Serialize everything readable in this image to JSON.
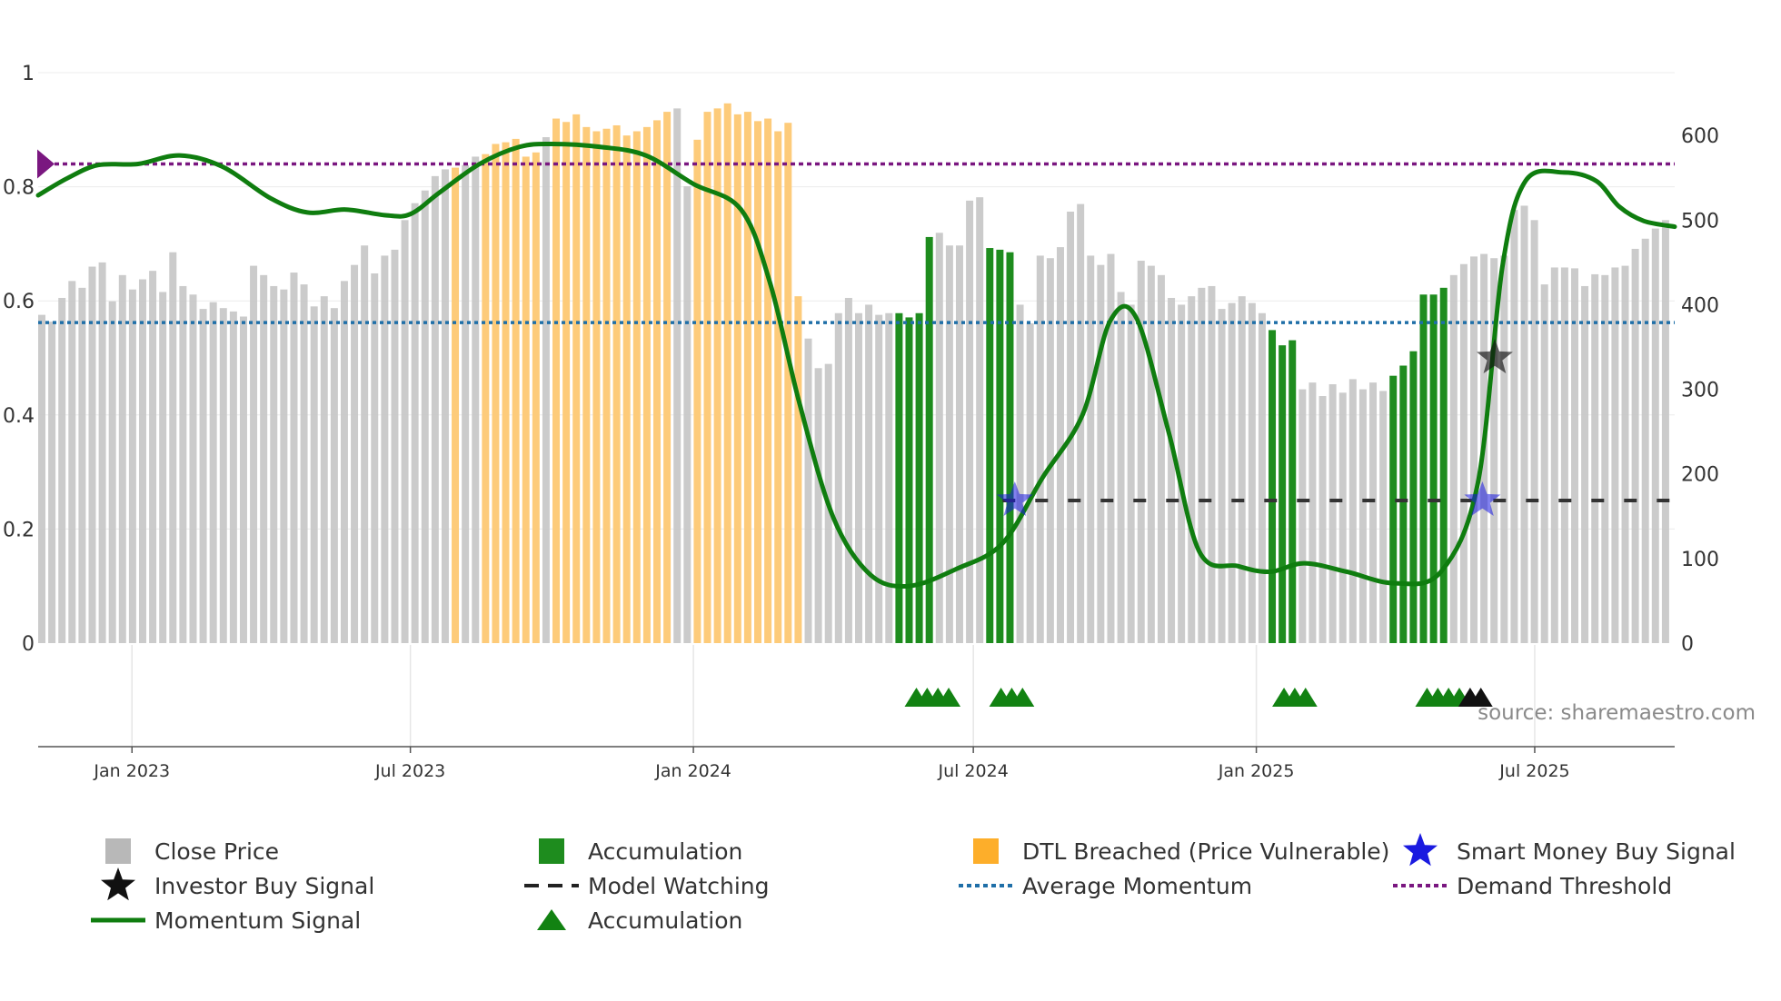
{
  "chart_data": {
    "type": "bar",
    "source": "source: sharemaestro.com",
    "left_axis": {
      "ticks": [
        {
          "value": 0,
          "label": "0"
        },
        {
          "value": 0.2,
          "label": "0.2"
        },
        {
          "value": 0.4,
          "label": "0.4"
        },
        {
          "value": 0.6,
          "label": "0.6"
        },
        {
          "value": 0.8,
          "label": "0.8"
        },
        {
          "value": 1,
          "label": "1"
        }
      ],
      "ylim": [
        0,
        1
      ]
    },
    "right_axis": {
      "ticks": [
        {
          "value": 0,
          "label": "0"
        },
        {
          "value": 100,
          "label": "100"
        },
        {
          "value": 200,
          "label": "200"
        },
        {
          "value": 300,
          "label": "300"
        },
        {
          "value": 400,
          "label": "400"
        },
        {
          "value": 500,
          "label": "500"
        },
        {
          "value": 600,
          "label": "600"
        }
      ],
      "ylim": [
        0,
        685
      ]
    },
    "x_axis": {
      "start": "2022-11-01",
      "end": "2025-09-30",
      "ticks": [
        {
          "date": "2023-01-01",
          "label": "Jan 2023"
        },
        {
          "date": "2023-07-01",
          "label": "Jul 2023"
        },
        {
          "date": "2024-01-01",
          "label": "Jan 2024"
        },
        {
          "date": "2024-07-01",
          "label": "Jul 2024"
        },
        {
          "date": "2025-01-01",
          "label": "Jan 2025"
        },
        {
          "date": "2025-07-01",
          "label": "Jul 2025"
        }
      ]
    },
    "close_price": [
      388,
      380,
      408,
      428,
      420,
      445,
      450,
      404,
      435,
      418,
      430,
      440,
      415,
      462,
      422,
      412,
      395,
      403,
      396,
      392,
      386,
      446,
      435,
      422,
      418,
      438,
      424,
      398,
      410,
      396,
      428,
      447,
      470,
      437,
      458,
      465,
      500,
      520,
      535,
      552,
      560,
      562,
      565,
      575,
      578,
      590,
      592,
      596,
      575,
      580,
      598,
      620,
      616,
      625,
      610,
      605,
      608,
      612,
      600,
      605,
      610,
      618,
      628,
      632,
      540,
      595,
      628,
      632,
      638,
      625,
      628,
      617,
      620,
      605,
      615,
      410,
      360,
      325,
      330,
      390,
      408,
      390,
      400,
      388,
      390,
      390,
      385,
      390,
      480,
      485,
      470,
      470,
      523,
      527,
      467,
      465,
      462,
      400,
      378,
      458,
      455,
      468,
      510,
      519,
      458,
      447,
      460,
      415,
      400,
      452,
      446,
      435,
      408,
      400,
      410,
      420,
      422,
      395,
      402,
      410,
      402,
      390,
      370,
      352,
      358,
      300,
      308,
      292,
      306,
      296,
      312,
      300,
      308,
      298,
      316,
      328,
      345,
      412,
      412,
      420,
      435,
      448,
      457,
      460,
      455,
      458,
      512,
      517,
      500,
      424,
      444,
      444,
      443,
      422,
      436,
      435,
      444,
      446,
      466,
      478,
      490,
      500
    ],
    "bar_states": [
      "close",
      "close",
      "close",
      "close",
      "close",
      "close",
      "close",
      "close",
      "close",
      "close",
      "close",
      "close",
      "close",
      "close",
      "close",
      "close",
      "close",
      "close",
      "close",
      "close",
      "close",
      "close",
      "close",
      "close",
      "close",
      "close",
      "close",
      "close",
      "close",
      "close",
      "close",
      "close",
      "close",
      "close",
      "close",
      "close",
      "close",
      "close",
      "close",
      "close",
      "close",
      "dtl",
      "close",
      "close",
      "dtl",
      "dtl",
      "dtl",
      "dtl",
      "dtl",
      "dtl",
      "close",
      "dtl",
      "dtl",
      "dtl",
      "dtl",
      "dtl",
      "dtl",
      "dtl",
      "dtl",
      "dtl",
      "dtl",
      "dtl",
      "dtl",
      "close",
      "close",
      "dtl",
      "dtl",
      "dtl",
      "dtl",
      "dtl",
      "dtl",
      "dtl",
      "dtl",
      "dtl",
      "dtl",
      "dtl",
      "close",
      "close",
      "close",
      "close",
      "close",
      "close",
      "close",
      "close",
      "close",
      "accum",
      "accum",
      "accum",
      "accum",
      "close",
      "close",
      "close",
      "close",
      "close",
      "accum",
      "accum",
      "accum",
      "close",
      "close",
      "close",
      "close",
      "close",
      "close",
      "close",
      "close",
      "close",
      "close",
      "close",
      "close",
      "close",
      "close",
      "close",
      "close",
      "close",
      "close",
      "close",
      "close",
      "close",
      "close",
      "close",
      "close",
      "close",
      "accum",
      "accum",
      "accum",
      "close",
      "close",
      "close",
      "close",
      "close",
      "close",
      "close",
      "close",
      "close",
      "accum",
      "accum",
      "accum",
      "accum",
      "accum",
      "accum",
      "close",
      "close",
      "close",
      "close",
      "close",
      "close",
      "close",
      "close",
      "close",
      "close",
      "close",
      "close",
      "close",
      "close",
      "close",
      "close",
      "close",
      "close",
      "close",
      "close",
      "close",
      "close"
    ],
    "momentum_signal": [
      {
        "date": "2022-11-01",
        "value": 0.785
      },
      {
        "date": "2022-11-20",
        "value": 0.815
      },
      {
        "date": "2022-12-10",
        "value": 0.838
      },
      {
        "date": "2023-01-05",
        "value": 0.84
      },
      {
        "date": "2023-02-01",
        "value": 0.855
      },
      {
        "date": "2023-03-01",
        "value": 0.835
      },
      {
        "date": "2023-04-01",
        "value": 0.78
      },
      {
        "date": "2023-04-25",
        "value": 0.755
      },
      {
        "date": "2023-05-20",
        "value": 0.76
      },
      {
        "date": "2023-06-15",
        "value": 0.75
      },
      {
        "date": "2023-07-01",
        "value": 0.752
      },
      {
        "date": "2023-07-20",
        "value": 0.79
      },
      {
        "date": "2023-08-15",
        "value": 0.84
      },
      {
        "date": "2023-09-10",
        "value": 0.87
      },
      {
        "date": "2023-10-01",
        "value": 0.875
      },
      {
        "date": "2023-11-01",
        "value": 0.87
      },
      {
        "date": "2023-12-01",
        "value": 0.855
      },
      {
        "date": "2024-01-01",
        "value": 0.805
      },
      {
        "date": "2024-02-01",
        "value": 0.76
      },
      {
        "date": "2024-02-20",
        "value": 0.63
      },
      {
        "date": "2024-03-10",
        "value": 0.42
      },
      {
        "date": "2024-04-01",
        "value": 0.22
      },
      {
        "date": "2024-04-25",
        "value": 0.12
      },
      {
        "date": "2024-05-20",
        "value": 0.1
      },
      {
        "date": "2024-06-20",
        "value": 0.13
      },
      {
        "date": "2024-07-20",
        "value": 0.175
      },
      {
        "date": "2024-08-15",
        "value": 0.29
      },
      {
        "date": "2024-09-10",
        "value": 0.4
      },
      {
        "date": "2024-09-28",
        "value": 0.565
      },
      {
        "date": "2024-10-15",
        "value": 0.57
      },
      {
        "date": "2024-11-05",
        "value": 0.37
      },
      {
        "date": "2024-11-25",
        "value": 0.16
      },
      {
        "date": "2024-12-20",
        "value": 0.135
      },
      {
        "date": "2025-01-10",
        "value": 0.125
      },
      {
        "date": "2025-02-01",
        "value": 0.14
      },
      {
        "date": "2025-03-01",
        "value": 0.125
      },
      {
        "date": "2025-04-01",
        "value": 0.105
      },
      {
        "date": "2025-05-01",
        "value": 0.125
      },
      {
        "date": "2025-05-25",
        "value": 0.28
      },
      {
        "date": "2025-06-10",
        "value": 0.66
      },
      {
        "date": "2025-06-25",
        "value": 0.81
      },
      {
        "date": "2025-07-20",
        "value": 0.825
      },
      {
        "date": "2025-08-10",
        "value": 0.81
      },
      {
        "date": "2025-08-25",
        "value": 0.765
      },
      {
        "date": "2025-09-10",
        "value": 0.74
      },
      {
        "date": "2025-09-30",
        "value": 0.73
      }
    ],
    "average_momentum": 0.562,
    "demand_threshold": 0.84,
    "model_watching": {
      "start": "2024-07-20",
      "end": "2025-09-30",
      "value": 0.25
    },
    "smart_money_buy_signals": [
      {
        "date": "2024-07-28",
        "value": 0.25
      },
      {
        "date": "2025-05-28",
        "value": 0.25
      }
    ],
    "investor_buy_signals": [
      {
        "date": "2025-06-05",
        "value": 0.5
      }
    ],
    "accumulation_markers": [
      {
        "date": "2024-05-25",
        "color": "#128212"
      },
      {
        "date": "2024-06-01",
        "color": "#128212"
      },
      {
        "date": "2024-06-08",
        "color": "#128212"
      },
      {
        "date": "2024-06-15",
        "color": "#128212"
      },
      {
        "date": "2024-07-19",
        "color": "#128212"
      },
      {
        "date": "2024-07-26",
        "color": "#128212"
      },
      {
        "date": "2024-08-02",
        "color": "#128212"
      },
      {
        "date": "2025-01-19",
        "color": "#128212"
      },
      {
        "date": "2025-01-26",
        "color": "#128212"
      },
      {
        "date": "2025-02-02",
        "color": "#128212"
      },
      {
        "date": "2025-04-22",
        "color": "#128212"
      },
      {
        "date": "2025-04-29",
        "color": "#128212"
      },
      {
        "date": "2025-05-06",
        "color": "#128212"
      },
      {
        "date": "2025-05-13",
        "color": "#128212"
      },
      {
        "date": "2025-05-20",
        "color": "#111111"
      },
      {
        "date": "2025-05-27",
        "color": "#111111"
      }
    ],
    "colors": {
      "close": "#c8c8c8",
      "accum": "#1e8c1e",
      "dtl": "#fdcb7a",
      "momentum": "#0f7d0f",
      "avg": "#1f6fa8",
      "demand": "#7a1780",
      "watch": "#333333",
      "smart": "#1a1ae0",
      "investor": "#111111"
    },
    "legend": [
      {
        "label": "Close Price",
        "kind": "square",
        "color": "#b8b8b8"
      },
      {
        "label": "Accumulation",
        "kind": "square",
        "color": "#1e8c1e"
      },
      {
        "label": "DTL Breached (Price Vulnerable)",
        "kind": "square",
        "color": "#fdae2a"
      },
      {
        "label": "Smart Money Buy Signal",
        "kind": "star",
        "color": "#1a1ae0"
      },
      {
        "label": "Investor Buy Signal",
        "kind": "star",
        "color": "#111111"
      },
      {
        "label": "Model Watching",
        "kind": "dash",
        "color": "#222222"
      },
      {
        "label": "Average Momentum",
        "kind": "dot",
        "color": "#1f6fa8"
      },
      {
        "label": "Demand Threshold",
        "kind": "dot",
        "color": "#7a1780"
      },
      {
        "label": "Momentum Signal",
        "kind": "line",
        "color": "#0f7d0f"
      },
      {
        "label": "Accumulation",
        "kind": "triangle",
        "color": "#128212"
      }
    ]
  }
}
